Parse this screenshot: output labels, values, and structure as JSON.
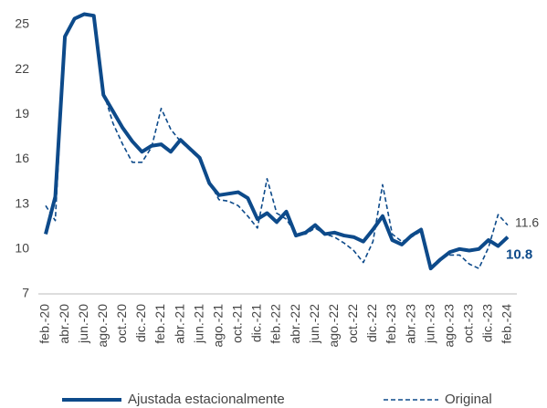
{
  "chart_data": {
    "type": "line",
    "categories": [
      "feb.-20",
      null,
      "abr.-20",
      null,
      "jun.-20",
      null,
      "ago.-20",
      null,
      "oct.-20",
      null,
      "dic.-20",
      null,
      "feb.-21",
      null,
      "abr.-21",
      null,
      "jun.-21",
      null,
      "ago.-21",
      null,
      "oct.-21",
      null,
      "dic.-21",
      null,
      "feb.-22",
      null,
      "abr.-22",
      null,
      "jun.-22",
      null,
      "ago.-22",
      null,
      "oct.-22",
      null,
      "dic.-22",
      null,
      "feb.-23",
      null,
      "abr.-23",
      null,
      "jun.-23",
      null,
      "ago.-23",
      null,
      "oct.-23",
      null,
      "dic.-23",
      null,
      "feb.-24"
    ],
    "series": [
      {
        "name": "Ajustada estacionalmente",
        "color": "#0d4a8a",
        "dash": false,
        "values": [
          11.0,
          13.5,
          24.2,
          25.4,
          25.7,
          25.6,
          20.3,
          19.2,
          18.1,
          17.2,
          16.5,
          16.9,
          17.0,
          16.5,
          17.3,
          16.7,
          16.1,
          14.4,
          13.6,
          13.7,
          13.8,
          13.4,
          12.0,
          12.4,
          11.8,
          12.5,
          10.9,
          11.1,
          11.6,
          11.0,
          11.1,
          10.9,
          10.8,
          10.5,
          11.3,
          12.2,
          10.6,
          10.3,
          10.9,
          11.3,
          8.7,
          9.3,
          9.8,
          10.0,
          9.9,
          10.0,
          10.6,
          10.2,
          10.8
        ]
      },
      {
        "name": "Original",
        "color": "#0d4a8a",
        "dash": true,
        "values": [
          12.9,
          11.9,
          24.2,
          25.4,
          25.7,
          25.6,
          20.5,
          18.4,
          17.0,
          15.8,
          15.8,
          16.8,
          19.4,
          18.0,
          17.2,
          16.6,
          16.0,
          14.5,
          13.3,
          13.2,
          12.9,
          12.2,
          11.4,
          14.7,
          12.4,
          12.0,
          11.0,
          11.0,
          11.4,
          11.0,
          10.8,
          10.4,
          9.9,
          9.1,
          10.5,
          14.3,
          11.0,
          10.5,
          10.8,
          11.2,
          8.8,
          9.4,
          9.6,
          9.6,
          9.0,
          8.7,
          10.1,
          12.3,
          11.6
        ]
      }
    ],
    "ylim": [
      7,
      26
    ],
    "yticks": [
      7,
      10,
      13,
      16,
      19,
      22,
      25
    ],
    "grid": false,
    "legend": "bottom"
  }
}
